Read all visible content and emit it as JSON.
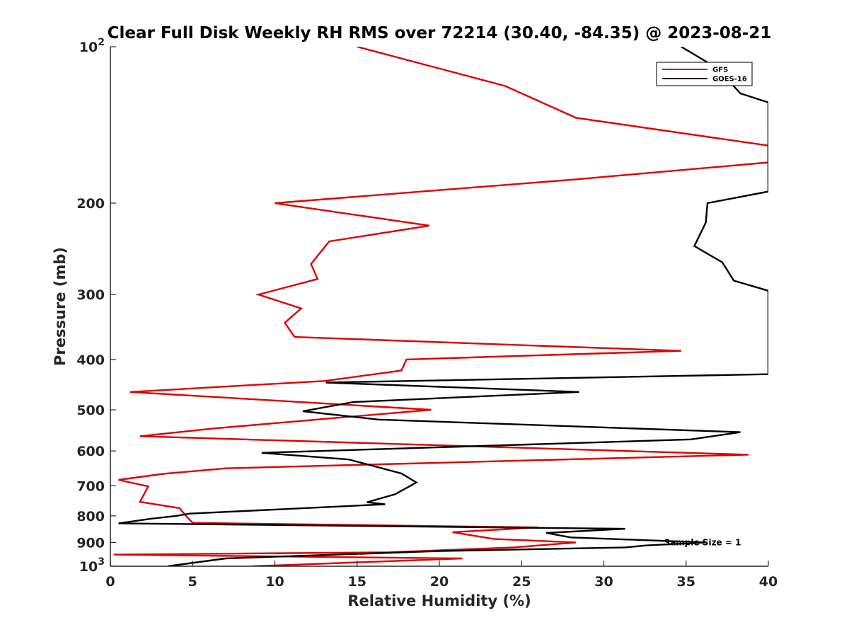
{
  "chart_data": {
    "type": "line",
    "title": "Clear Full Disk Weekly RH RMS over 72214 (30.40, -84.35) @ 2023-08-21",
    "xlabel": "Relative Humidity (%)",
    "ylabel": "Pressure (mb)",
    "xlim": [
      0,
      40
    ],
    "ylim": [
      100,
      1000
    ],
    "yscale": "log",
    "y_reversed": true,
    "xticks": [
      0,
      5,
      10,
      15,
      20,
      25,
      30,
      35,
      40
    ],
    "xtick_labels": [
      "0",
      "5",
      "10",
      "15",
      "20",
      "25",
      "30",
      "35",
      "40"
    ],
    "yticks": [
      100,
      200,
      300,
      400,
      500,
      600,
      700,
      800,
      900,
      1000
    ],
    "ytick_labels": [
      {
        "base": "10",
        "exp": "2"
      },
      {
        "base": "200",
        "exp": ""
      },
      {
        "base": "300",
        "exp": ""
      },
      {
        "base": "400",
        "exp": ""
      },
      {
        "base": "500",
        "exp": ""
      },
      {
        "base": "600",
        "exp": ""
      },
      {
        "base": "700",
        "exp": ""
      },
      {
        "base": "800",
        "exp": ""
      },
      {
        "base": "900",
        "exp": ""
      },
      {
        "base": "10",
        "exp": "3"
      }
    ],
    "legend_position": "top-right",
    "annotation": "Sample Size = 1",
    "annotation_anchor": {
      "x": 36,
      "p": 900
    },
    "series": [
      {
        "name": "GFS",
        "color": "#e00000",
        "points": [
          [
            15.0,
            100
          ],
          [
            24.0,
            119
          ],
          [
            28.3,
            137
          ],
          [
            40.0,
            155
          ],
          [
            40.0,
            167
          ],
          [
            28.3,
            180
          ],
          [
            10.0,
            200
          ],
          [
            19.4,
            221
          ],
          [
            13.3,
            237
          ],
          [
            12.2,
            262
          ],
          [
            12.6,
            280
          ],
          [
            9.0,
            300
          ],
          [
            11.6,
            319
          ],
          [
            10.6,
            340
          ],
          [
            11.2,
            362
          ],
          [
            34.7,
            385
          ],
          [
            18.0,
            400
          ],
          [
            17.7,
            420
          ],
          [
            13.0,
            440
          ],
          [
            1.2,
            462
          ],
          [
            19.5,
            500
          ],
          [
            6.3,
            543
          ],
          [
            1.8,
            562
          ],
          [
            38.8,
            610
          ],
          [
            7.0,
            648
          ],
          [
            3.2,
            664
          ],
          [
            0.5,
            682
          ],
          [
            2.3,
            702
          ],
          [
            1.8,
            752
          ],
          [
            4.2,
            773
          ],
          [
            4.6,
            800
          ],
          [
            5.0,
            825
          ],
          [
            26.0,
            842
          ],
          [
            20.8,
            860
          ],
          [
            23.3,
            886
          ],
          [
            28.3,
            900
          ],
          [
            24.5,
            920
          ],
          [
            17.0,
            940
          ],
          [
            0.2,
            950
          ],
          [
            21.4,
            966
          ],
          [
            8.7,
            1000
          ]
        ]
      },
      {
        "name": "GOES-16",
        "color": "#000000",
        "points": [
          [
            34.7,
            100
          ],
          [
            36.9,
            110
          ],
          [
            38.3,
            123
          ],
          [
            40.0,
            128
          ],
          [
            40.0,
            190
          ],
          [
            36.3,
            200
          ],
          [
            36.2,
            218
          ],
          [
            35.5,
            242
          ],
          [
            37.2,
            260
          ],
          [
            37.9,
            282
          ],
          [
            40.0,
            295
          ],
          [
            40.0,
            427
          ],
          [
            13.1,
            443
          ],
          [
            28.5,
            462
          ],
          [
            14.8,
            483
          ],
          [
            11.7,
            503
          ],
          [
            16.3,
            522
          ],
          [
            38.3,
            552
          ],
          [
            35.3,
            570
          ],
          [
            9.2,
            605
          ],
          [
            14.5,
            623
          ],
          [
            17.7,
            663
          ],
          [
            18.6,
            690
          ],
          [
            17.3,
            727
          ],
          [
            15.6,
            753
          ],
          [
            16.7,
            760
          ],
          [
            4.8,
            792
          ],
          [
            4.0,
            800
          ],
          [
            2.5,
            810
          ],
          [
            0.5,
            827
          ],
          [
            31.3,
            847
          ],
          [
            26.5,
            863
          ],
          [
            28.0,
            880
          ],
          [
            36.2,
            900
          ],
          [
            32.6,
            912
          ],
          [
            31.3,
            920
          ],
          [
            20.0,
            935
          ],
          [
            7.0,
            966
          ],
          [
            3.5,
            1000
          ]
        ]
      }
    ]
  }
}
